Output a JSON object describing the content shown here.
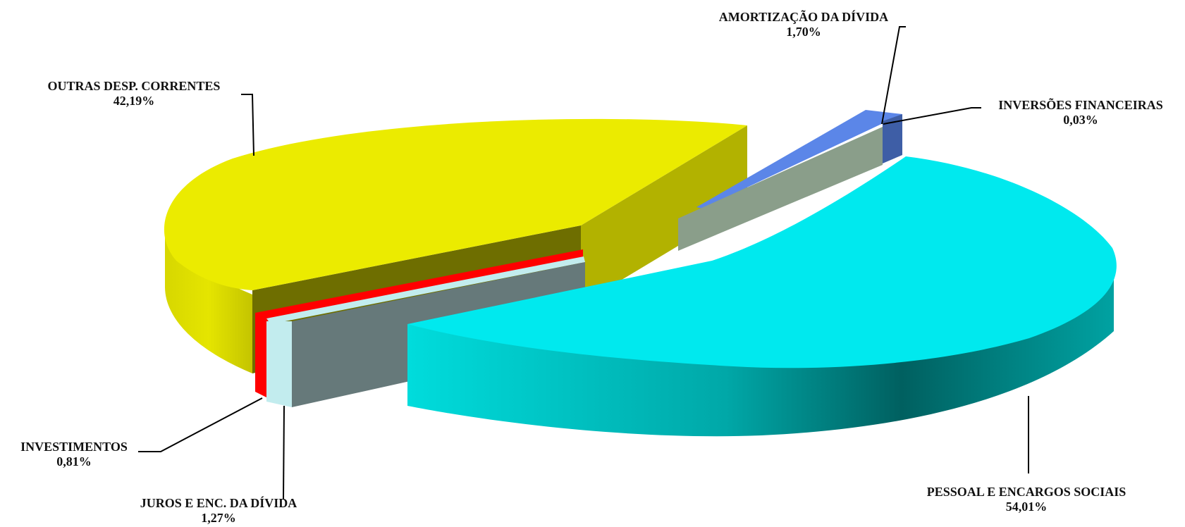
{
  "chart_data": {
    "type": "pie",
    "style": "3d-exploded",
    "title": "",
    "slices": [
      {
        "name": "AMORTIZAÇÃO DA DÍVIDA",
        "value": 1.7,
        "value_label": "1,70%",
        "color": "#5b86e8"
      },
      {
        "name": "INVERSÕES FINANCEIRAS",
        "value": 0.03,
        "value_label": "0,03%",
        "color": "#3e5ea6"
      },
      {
        "name": "PESSOAL E ENCARGOS SOCIAIS",
        "value": 54.01,
        "value_label": "54,01%",
        "color": "#00e9ee"
      },
      {
        "name": "JUROS E ENC. DA DÍVIDA",
        "value": 1.27,
        "value_label": "1,27%",
        "color": "#c2ecee"
      },
      {
        "name": "INVESTIMENTOS",
        "value": 0.81,
        "value_label": "0,81%",
        "color": "#ff0000"
      },
      {
        "name": "OUTRAS DESP. CORRENTES",
        "value": 42.19,
        "value_label": "42,19%",
        "color": "#ebeb00"
      }
    ],
    "legend": "none",
    "labels": "outside-with-leader-lines"
  }
}
